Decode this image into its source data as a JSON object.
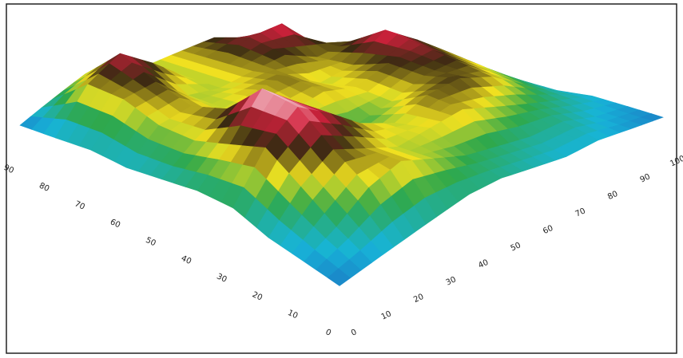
{
  "chart_data": {
    "type": "surface",
    "xlim": [
      0,
      100
    ],
    "xticks": [
      0,
      10,
      20,
      30,
      40,
      50,
      60,
      70,
      80,
      90,
      100
    ],
    "ylim": [
      0,
      90
    ],
    "yticks": [
      0,
      10,
      20,
      30,
      40,
      50,
      60,
      70,
      80,
      90
    ],
    "zlim": [
      0,
      10
    ],
    "z": [
      [
        1,
        1.5,
        2,
        2.5,
        3,
        3,
        2.5,
        2,
        2,
        1.5,
        1
      ],
      [
        1.5,
        3,
        5,
        6,
        5,
        4,
        3.5,
        3,
        3,
        2,
        1.5
      ],
      [
        2,
        5,
        7,
        6,
        5,
        5.5,
        6,
        5,
        4,
        3,
        2
      ],
      [
        3,
        7,
        9.5,
        8,
        6,
        5,
        6.5,
        7,
        6,
        4,
        2
      ],
      [
        3,
        6,
        10,
        8,
        5,
        4,
        5,
        6.5,
        7,
        5,
        2.5
      ],
      [
        2.5,
        5,
        7,
        6,
        5,
        6,
        5.5,
        7,
        8,
        6,
        3
      ],
      [
        2,
        5,
        6,
        5,
        6,
        6.5,
        5,
        6,
        9,
        7,
        3
      ],
      [
        2,
        6,
        7,
        5,
        5,
        6,
        7,
        6,
        7,
        6,
        2.5
      ],
      [
        1.5,
        6,
        8.5,
        7,
        5,
        6,
        8,
        9,
        6,
        4,
        2
      ],
      [
        1,
        3,
        5,
        6,
        5,
        6,
        7,
        5,
        4,
        3,
        1.5
      ]
    ],
    "colorscale": [
      [
        0,
        "#1f4fb5"
      ],
      [
        2,
        "#17b4d8"
      ],
      [
        4,
        "#2fa84a"
      ],
      [
        5.5,
        "#f0e020"
      ],
      [
        7,
        "#3a2a12"
      ],
      [
        8.5,
        "#d2203c"
      ],
      [
        10,
        "#ffffff"
      ]
    ]
  }
}
